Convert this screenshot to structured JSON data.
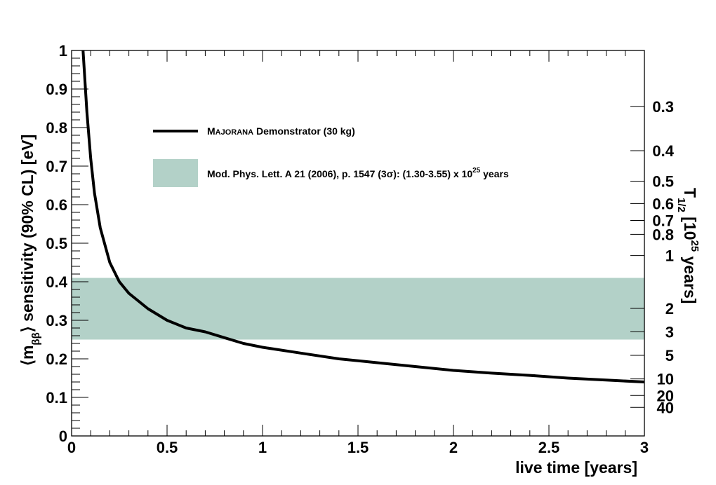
{
  "chart_data": {
    "type": "line",
    "x_axis": {
      "label": "live time [years]",
      "range": [
        0,
        3
      ],
      "major_ticks": [
        0,
        0.5,
        1,
        1.5,
        2,
        2.5,
        3
      ],
      "tick_labels": [
        "0",
        "0.5",
        "1",
        "1.5",
        "2",
        "2.5",
        "3"
      ],
      "minor_step": 0.1
    },
    "y_axis": {
      "label_prefix": "⟨m",
      "label_subscript": "ββ",
      "label_suffix": "⟩ sensitivity (90% CL) [eV]",
      "range": [
        0,
        1
      ],
      "major_ticks": [
        0,
        0.1,
        0.2,
        0.3,
        0.4,
        0.5,
        0.6,
        0.7,
        0.8,
        0.9,
        1
      ],
      "tick_labels": [
        "0",
        "0.1",
        "0.2",
        "0.3",
        "0.4",
        "0.5",
        "0.6",
        "0.7",
        "0.8",
        "0.9",
        "1"
      ],
      "minor_step": 0.02
    },
    "right_axis": {
      "label_main": "T",
      "label_subscript": "1/2",
      "label_mid": " [10",
      "label_superscript": "25",
      "label_end": " years]",
      "ticks": [
        {
          "value": 0.3,
          "label": "0.3",
          "y_equiv": 0.855
        },
        {
          "value": 0.4,
          "label": "0.4",
          "y_equiv": 0.74
        },
        {
          "value": 0.5,
          "label": "0.5",
          "y_equiv": 0.661
        },
        {
          "value": 0.6,
          "label": "0.6",
          "y_equiv": 0.603
        },
        {
          "value": 0.7,
          "label": "0.7",
          "y_equiv": 0.559
        },
        {
          "value": 0.8,
          "label": "0.8",
          "y_equiv": 0.523
        },
        {
          "value": 1,
          "label": "1",
          "y_equiv": 0.468
        },
        {
          "value": 2,
          "label": "2",
          "y_equiv": 0.331
        },
        {
          "value": 3,
          "label": "3",
          "y_equiv": 0.27
        },
        {
          "value": 5,
          "label": "5",
          "y_equiv": 0.209
        },
        {
          "value": 10,
          "label": "10",
          "y_equiv": 0.148
        },
        {
          "value": 20,
          "label": "20",
          "y_equiv": 0.105
        },
        {
          "value": 40,
          "label": "40",
          "y_equiv": 0.074
        }
      ]
    },
    "series": [
      {
        "name": "Majorana Demonstrator (30 kg)",
        "color": "#000000",
        "x": [
          0.06,
          0.08,
          0.1,
          0.12,
          0.15,
          0.2,
          0.25,
          0.3,
          0.35,
          0.4,
          0.5,
          0.6,
          0.7,
          0.8,
          0.9,
          1.0,
          1.2,
          1.4,
          1.6,
          1.8,
          2.0,
          2.2,
          2.4,
          2.6,
          2.8,
          3.0
        ],
        "y": [
          1.0,
          0.84,
          0.72,
          0.63,
          0.54,
          0.45,
          0.4,
          0.37,
          0.35,
          0.33,
          0.3,
          0.28,
          0.27,
          0.255,
          0.24,
          0.23,
          0.215,
          0.2,
          0.19,
          0.18,
          0.17,
          0.163,
          0.157,
          0.15,
          0.145,
          0.14
        ]
      }
    ],
    "band": {
      "name": "Mod. Phys. Lett. A 21 (2006), p. 1547 (3σ): (1.30-3.55) x 10^25 years",
      "y_low": 0.25,
      "y_high": 0.41,
      "color": "#b3d1c8"
    },
    "legend": {
      "position": "top-center",
      "entries": [
        {
          "kind": "line",
          "prefix": "M",
          "smallcaps": "AJORANA",
          "suffix": " Demonstrator (30 kg)"
        },
        {
          "kind": "band",
          "text": "Mod. Phys. Lett. A 21 (2006), p. 1547 (3σ): (1.30-3.55) x 10",
          "superscript": "25",
          "suffix": " years"
        }
      ]
    }
  }
}
